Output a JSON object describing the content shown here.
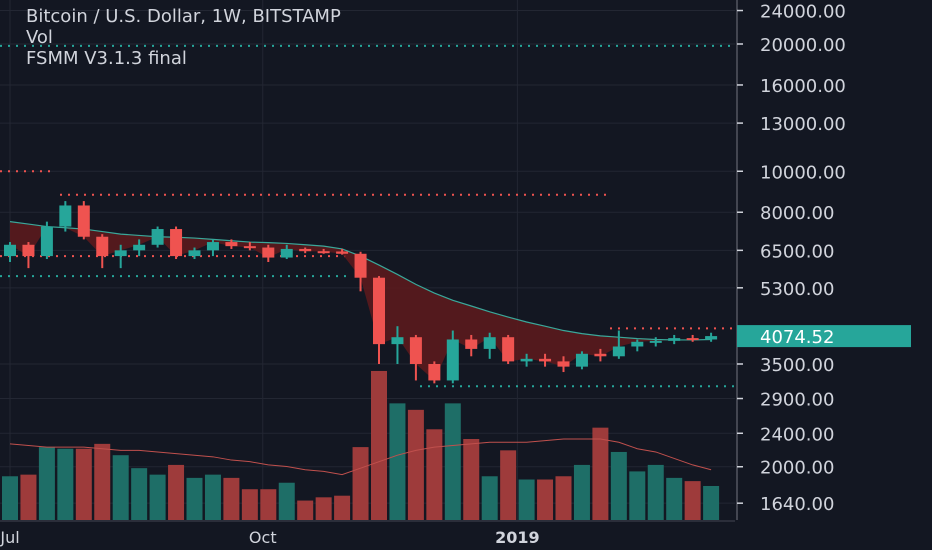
{
  "legend": {
    "title": "Bitcoin / U.S. Dollar, 1W, BITSTAMP",
    "vol_label": "Vol",
    "indicator": "FSMM V3.1.3 final"
  },
  "colors": {
    "background": "#131722",
    "up": "#26a69a",
    "down": "#ef5350",
    "grid": "#232733",
    "text": "#d1d4dc",
    "ema_fill": "#5b1a1d",
    "vol_up": "#1e6e67",
    "vol_down": "#9e3b3b"
  },
  "chart_data": {
    "type": "candlestick",
    "title": "Bitcoin / U.S. Dollar, 1W, BITSTAMP",
    "y_scale": "log",
    "y_ticks": [
      24000,
      20000,
      16000,
      13000,
      10000,
      8000,
      6500,
      5300,
      3500,
      2900,
      2400,
      2000,
      1640
    ],
    "y_tick_labels": [
      "24000.00",
      "20000.00",
      "16000.00",
      "13000.00",
      "10000.00",
      "8000.00",
      "6500.00",
      "5300.00",
      "3500.00",
      "2900.00",
      "2400.00",
      "2000.00",
      "1640.00"
    ],
    "x_tick_labels": [
      "Jul",
      "Oct",
      "2019"
    ],
    "x_tick_index": [
      0,
      13.7,
      27.5
    ],
    "last_price": 4074.52,
    "last_price_label": "4074.52",
    "candles": [
      {
        "o": 6300,
        "h": 6800,
        "l": 6100,
        "c": 6700
      },
      {
        "o": 6700,
        "h": 6800,
        "l": 5900,
        "c": 6300
      },
      {
        "o": 6300,
        "h": 7600,
        "l": 6200,
        "c": 7400
      },
      {
        "o": 7400,
        "h": 8500,
        "l": 7200,
        "c": 8300
      },
      {
        "o": 8300,
        "h": 8500,
        "l": 6900,
        "c": 7000
      },
      {
        "o": 7000,
        "h": 7100,
        "l": 5900,
        "c": 6300
      },
      {
        "o": 6300,
        "h": 6700,
        "l": 5900,
        "c": 6500
      },
      {
        "o": 6500,
        "h": 6900,
        "l": 6300,
        "c": 6700
      },
      {
        "o": 6700,
        "h": 7400,
        "l": 6600,
        "c": 7300
      },
      {
        "o": 7300,
        "h": 7400,
        "l": 6200,
        "c": 6300
      },
      {
        "o": 6300,
        "h": 6600,
        "l": 6200,
        "c": 6500
      },
      {
        "o": 6500,
        "h": 6900,
        "l": 6300,
        "c": 6800
      },
      {
        "o": 6800,
        "h": 6900,
        "l": 6550,
        "c": 6650
      },
      {
        "o": 6650,
        "h": 6800,
        "l": 6500,
        "c": 6600
      },
      {
        "o": 6600,
        "h": 6700,
        "l": 6100,
        "c": 6250
      },
      {
        "o": 6250,
        "h": 6700,
        "l": 6200,
        "c": 6550
      },
      {
        "o": 6550,
        "h": 6600,
        "l": 6400,
        "c": 6470
      },
      {
        "o": 6470,
        "h": 6550,
        "l": 6380,
        "c": 6460
      },
      {
        "o": 6460,
        "h": 6550,
        "l": 6350,
        "c": 6380
      },
      {
        "o": 6380,
        "h": 6450,
        "l": 5200,
        "c": 5600
      },
      {
        "o": 5600,
        "h": 5650,
        "l": 3500,
        "c": 3900
      },
      {
        "o": 3900,
        "h": 4300,
        "l": 3500,
        "c": 4050
      },
      {
        "o": 4050,
        "h": 4100,
        "l": 3200,
        "c": 3500
      },
      {
        "o": 3500,
        "h": 3550,
        "l": 3150,
        "c": 3200
      },
      {
        "o": 3200,
        "h": 4200,
        "l": 3150,
        "c": 4000
      },
      {
        "o": 4000,
        "h": 4100,
        "l": 3650,
        "c": 3800
      },
      {
        "o": 3800,
        "h": 4150,
        "l": 3600,
        "c": 4050
      },
      {
        "o": 4050,
        "h": 4100,
        "l": 3500,
        "c": 3550
      },
      {
        "o": 3550,
        "h": 3700,
        "l": 3450,
        "c": 3600
      },
      {
        "o": 3600,
        "h": 3700,
        "l": 3450,
        "c": 3550
      },
      {
        "o": 3550,
        "h": 3650,
        "l": 3350,
        "c": 3450
      },
      {
        "o": 3450,
        "h": 3750,
        "l": 3400,
        "c": 3700
      },
      {
        "o": 3700,
        "h": 3800,
        "l": 3550,
        "c": 3650
      },
      {
        "o": 3650,
        "h": 4200,
        "l": 3600,
        "c": 3850
      },
      {
        "o": 3850,
        "h": 4000,
        "l": 3750,
        "c": 3950
      },
      {
        "o": 3950,
        "h": 4050,
        "l": 3850,
        "c": 3970
      },
      {
        "o": 3970,
        "h": 4100,
        "l": 3900,
        "c": 4030
      },
      {
        "o": 4030,
        "h": 4100,
        "l": 3950,
        "c": 4000
      },
      {
        "o": 4000,
        "h": 4150,
        "l": 3950,
        "c": 4074.52
      }
    ],
    "ema": [
      7600,
      7500,
      7400,
      7350,
      7300,
      7200,
      7100,
      7050,
      7000,
      6980,
      6950,
      6900,
      6850,
      6800,
      6780,
      6750,
      6700,
      6650,
      6550,
      6300,
      6000,
      5700,
      5400,
      5150,
      4950,
      4800,
      4650,
      4520,
      4400,
      4300,
      4200,
      4130,
      4080,
      4050,
      4020,
      4000,
      3990,
      3990,
      4000
    ],
    "volume": [
      0.27,
      0.28,
      0.45,
      0.44,
      0.44,
      0.47,
      0.4,
      0.32,
      0.28,
      0.34,
      0.26,
      0.28,
      0.26,
      0.19,
      0.19,
      0.23,
      0.12,
      0.14,
      0.15,
      0.45,
      0.92,
      0.72,
      0.68,
      0.56,
      0.72,
      0.5,
      0.27,
      0.43,
      0.25,
      0.25,
      0.27,
      0.34,
      0.57,
      0.42,
      0.3,
      0.34,
      0.26,
      0.24,
      0.21
    ],
    "volume_ma": [
      0.47,
      0.46,
      0.45,
      0.45,
      0.45,
      0.44,
      0.43,
      0.43,
      0.42,
      0.41,
      0.4,
      0.39,
      0.37,
      0.36,
      0.34,
      0.33,
      0.31,
      0.3,
      0.28,
      0.32,
      0.36,
      0.4,
      0.43,
      0.45,
      0.46,
      0.47,
      0.48,
      0.48,
      0.48,
      0.49,
      0.5,
      0.5,
      0.5,
      0.48,
      0.44,
      0.42,
      0.38,
      0.34,
      0.31
    ],
    "levels": [
      {
        "price": 19800,
        "style": "dotted",
        "color": "#26a69a"
      },
      {
        "price": 10000,
        "style": "dotted",
        "color": "#ef5350"
      },
      {
        "price": 8800,
        "style": "dotted",
        "color": "#ef5350"
      },
      {
        "price": 6300,
        "style": "dotted",
        "color": "#ef5350"
      },
      {
        "price": 5650,
        "style": "dotted",
        "color": "#26a69a"
      },
      {
        "price": 4250,
        "style": "dotted",
        "color": "#ef5350"
      },
      {
        "price": 3100,
        "style": "dotted",
        "color": "#26a69a"
      }
    ]
  }
}
